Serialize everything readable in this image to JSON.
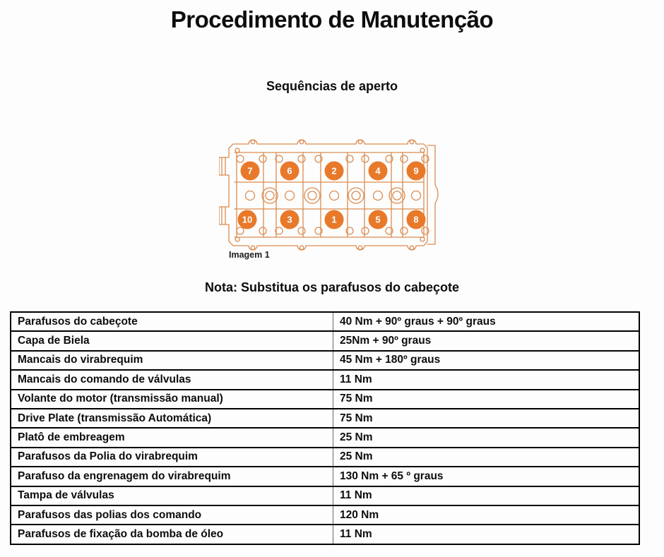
{
  "page": {
    "title": "Procedimento de Manutenção",
    "subtitle": "Sequências de aperto",
    "note": "Nota: Substitua os parafusos do cabeçote"
  },
  "diagram": {
    "caption": "Imagem 1",
    "description": "cylinder-head-bolt-tightening-sequence",
    "line_color": "#db8c50",
    "marker_color": "#e8792a",
    "marker_text_color": "#ffffff",
    "sequence_top_row": [
      "7",
      "6",
      "2",
      "4",
      "9"
    ],
    "sequence_bottom_row": [
      "10",
      "3",
      "1",
      "5",
      "8"
    ]
  },
  "table": {
    "rows": [
      {
        "item": "Parafusos do cabeçote",
        "torque": "40 Nm + 90º graus + 90º graus"
      },
      {
        "item": "Capa de Biela",
        "torque": "25Nm + 90º graus"
      },
      {
        "item": "Mancais do virabrequim",
        "torque": "45 Nm + 180º graus"
      },
      {
        "item": "Mancais do comando de válvulas",
        "torque": "11 Nm"
      },
      {
        "item": "Volante do motor (transmissão manual)",
        "torque": "75 Nm"
      },
      {
        "item": "Drive Plate (transmissão Automática)",
        "torque": "75 Nm"
      },
      {
        "item": "Platô de embreagem",
        "torque": "25 Nm"
      },
      {
        "item": "Parafusos da Polia do virabrequim",
        "torque": "25 Nm"
      },
      {
        "item": "Parafuso da engrenagem do virabrequim",
        "torque": "130 Nm + 65 º graus"
      },
      {
        "item": "Tampa de válvulas",
        "torque": "11 Nm"
      },
      {
        "item": "Parafusos das polias dos comando",
        "torque": "120 Nm"
      },
      {
        "item": "Parafusos de fixação da bomba de óleo",
        "torque": "11 Nm"
      }
    ]
  }
}
